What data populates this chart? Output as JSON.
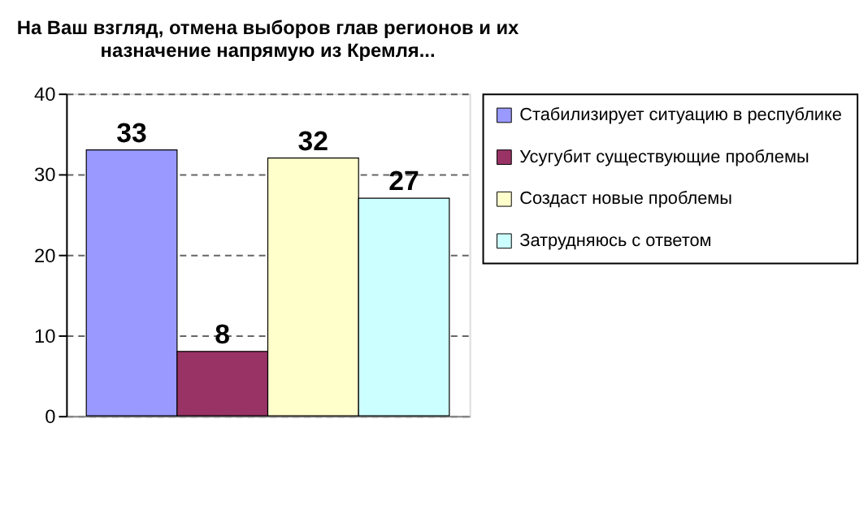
{
  "chart_data": {
    "type": "bar",
    "title": "На Ваш взгляд, отмена выборов глав регионов и их назначение напрямую из Кремля...",
    "categories": [
      null
    ],
    "series": [
      {
        "name": "Стабилизирует ситуацию в республике",
        "color": "#9999ff",
        "values": [
          33
        ]
      },
      {
        "name": "Усугубит существующие проблемы",
        "color": "#993366",
        "values": [
          8
        ]
      },
      {
        "name": "Создаст новые проблемы",
        "color": "#ffffcc",
        "values": [
          32
        ]
      },
      {
        "name": "Затрудняюсь с ответом",
        "color": "#ccffff",
        "values": [
          27
        ]
      }
    ],
    "ylim": [
      0,
      40
    ],
    "yticks": [
      0,
      10,
      20,
      30,
      40
    ],
    "grid": "y",
    "legend": "right",
    "data_labels": true
  }
}
